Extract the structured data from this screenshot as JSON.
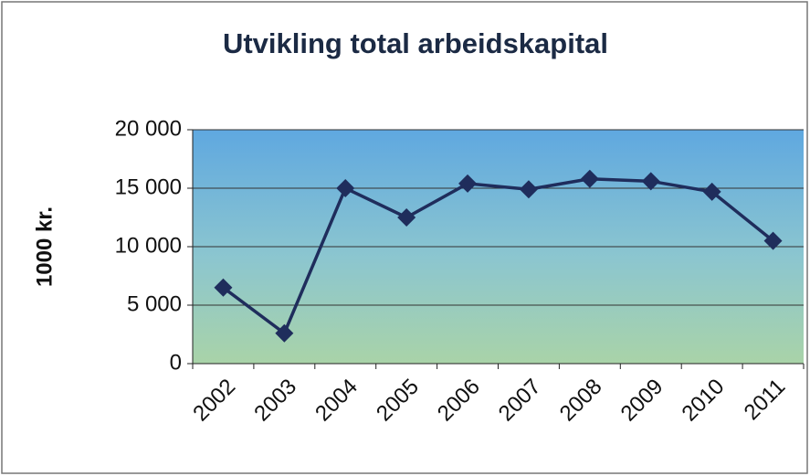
{
  "chart_data": {
    "type": "line",
    "title": "Utvikling total arbeidskapital",
    "y_label": "1000 kr.",
    "categories": [
      "2002",
      "2003",
      "2004",
      "2005",
      "2006",
      "2007",
      "2008",
      "2009",
      "2010",
      "2011"
    ],
    "values": [
      6500,
      2600,
      15000,
      12500,
      15400,
      14900,
      15800,
      15600,
      14700,
      10500
    ],
    "color": "#1f2d5c",
    "ylim": [
      0,
      20000
    ],
    "yticks": [
      0,
      {
        "value": 5000,
        "label": "5 000"
      },
      {
        "value": 10000,
        "label": "10 000"
      },
      {
        "value": 15000,
        "label": "15 000"
      },
      {
        "value": 20000,
        "label": "20 000"
      }
    ],
    "grid": true
  }
}
